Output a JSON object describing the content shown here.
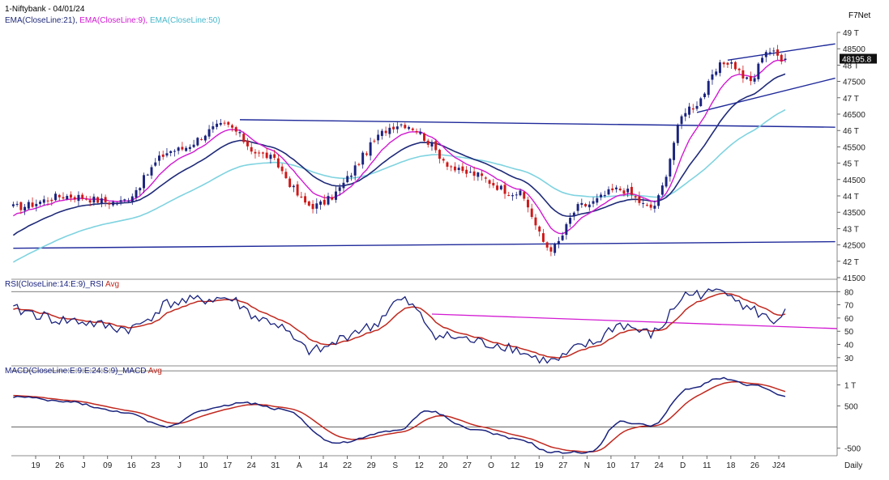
{
  "header": {
    "title": "1-Niftybank - 04/01/24",
    "ema_prefix": "EMA(CloseLine:21),",
    "ema_9": "EMA(CloseLine:9),",
    "ema_50": "EMA(CloseLine:50)",
    "source": "F7Net",
    "rsi_title": "RSI(CloseLine:14:E:9)_RSI",
    "rsi_avg": "Avg",
    "macd_title": "MACD(CloseLine:E:9:E:24:S:9)_MACD",
    "macd_avg": "Avg",
    "period": "Daily"
  },
  "colors": {
    "ema21": "#1f2a78",
    "ema9": "#d21ad2",
    "ema50": "#7fd3e0",
    "trend": "#1f2a9a",
    "bull": "#1a237e",
    "bear": "#d01818",
    "rsi": "#1a237e",
    "rsi_avg": "#c0281e",
    "rsi_trend": "#d21ad2",
    "macd": "#1a237e",
    "macd_avg": "#c0281e"
  },
  "chart_data": [
    {
      "type": "candlestick",
      "title": "1-Niftybank - 04/01/24",
      "last_value_label": "48195.8",
      "y_ticks": [
        "49 T",
        "48500",
        "48 T",
        "47500",
        "47 T",
        "46500",
        "46 T",
        "45500",
        "45 T",
        "44500",
        "44 T",
        "43500",
        "43 T",
        "42500",
        "42 T",
        "41500"
      ],
      "y_values": [
        49000,
        48500,
        48000,
        47500,
        47000,
        46500,
        46000,
        45500,
        45000,
        44500,
        44000,
        43500,
        43000,
        42500,
        42000,
        41500
      ],
      "ylim": [
        41500,
        49000
      ],
      "x_ticks": [
        "19",
        "26",
        "J",
        "09",
        "16",
        "23",
        "J",
        "10",
        "17",
        "24",
        "31",
        "A",
        "14",
        "22",
        "29",
        "S",
        "12",
        "20",
        "27",
        "O",
        "12",
        "19",
        "27",
        "N",
        "10",
        "17",
        "24",
        "D",
        "11",
        "18",
        "26",
        "J24"
      ],
      "key_points": [
        {
          "t": 0,
          "close": 43650
        },
        {
          "t": 14,
          "close": 44000
        },
        {
          "t": 27,
          "close": 43800
        },
        {
          "t": 42,
          "close": 45400
        },
        {
          "t": 55,
          "close": 46150
        },
        {
          "t": 65,
          "close": 45250
        },
        {
          "t": 78,
          "close": 43700
        },
        {
          "t": 101,
          "close": 46200
        },
        {
          "t": 118,
          "close": 44700
        },
        {
          "t": 131,
          "close": 44100
        },
        {
          "t": 140,
          "close": 42400
        },
        {
          "t": 148,
          "close": 43700
        },
        {
          "t": 158,
          "close": 44200
        },
        {
          "t": 166,
          "close": 43650
        },
        {
          "t": 176,
          "close": 46700
        },
        {
          "t": 186,
          "close": 48100
        },
        {
          "t": 192,
          "close": 47500
        },
        {
          "t": 196,
          "close": 48450
        },
        {
          "t": 201,
          "close": 48195
        }
      ],
      "trendlines": [
        {
          "from": [
            59,
            46330
          ],
          "to": [
            214,
            46100
          ]
        },
        {
          "from": [
            0,
            42400
          ],
          "to": [
            214,
            42600
          ]
        },
        {
          "from": [
            178,
            46550
          ],
          "to": [
            214,
            47600
          ]
        },
        {
          "from": [
            186,
            48150
          ],
          "to": [
            214,
            48650
          ]
        }
      ]
    },
    {
      "type": "line",
      "title": "RSI(CloseLine:14:E:9)_RSI",
      "series": [
        {
          "name": "RSI"
        },
        {
          "name": "Avg"
        }
      ],
      "y_ticks": [
        "80",
        "70",
        "60",
        "50",
        "40",
        "30"
      ],
      "y_values": [
        80,
        70,
        60,
        50,
        40,
        30
      ],
      "ylim": [
        25,
        82
      ],
      "key_points": [
        {
          "t": 0,
          "rsi": 66
        },
        {
          "t": 14,
          "rsi": 58
        },
        {
          "t": 30,
          "rsi": 52
        },
        {
          "t": 42,
          "rsi": 72
        },
        {
          "t": 55,
          "rsi": 75
        },
        {
          "t": 66,
          "rsi": 58
        },
        {
          "t": 78,
          "rsi": 35
        },
        {
          "t": 92,
          "rsi": 52
        },
        {
          "t": 101,
          "rsi": 73
        },
        {
          "t": 112,
          "rsi": 46
        },
        {
          "t": 126,
          "rsi": 40
        },
        {
          "t": 140,
          "rsi": 27
        },
        {
          "t": 150,
          "rsi": 40
        },
        {
          "t": 158,
          "rsi": 55
        },
        {
          "t": 166,
          "rsi": 48
        },
        {
          "t": 176,
          "rsi": 78
        },
        {
          "t": 186,
          "rsi": 81
        },
        {
          "t": 192,
          "rsi": 66
        },
        {
          "t": 198,
          "rsi": 58
        },
        {
          "t": 201,
          "rsi": 65
        }
      ],
      "trendline": {
        "from": [
          109,
          63
        ],
        "to": [
          214,
          52
        ]
      }
    },
    {
      "type": "line",
      "title": "MACD(CloseLine:E:9:E:24:S:9)_MACD",
      "series": [
        {
          "name": "MACD"
        },
        {
          "name": "Avg"
        }
      ],
      "y_ticks": [
        "1 T",
        "500",
        "-500"
      ],
      "y_values": [
        1000,
        500,
        -500
      ],
      "zero_line": 0,
      "ylim": [
        -620,
        1220
      ],
      "key_points": [
        {
          "t": 0,
          "macd": 720
        },
        {
          "t": 14,
          "macd": 600
        },
        {
          "t": 28,
          "macd": 360
        },
        {
          "t": 40,
          "macd": 10
        },
        {
          "t": 50,
          "macd": 420
        },
        {
          "t": 60,
          "macd": 580
        },
        {
          "t": 70,
          "macd": 420
        },
        {
          "t": 84,
          "macd": -380
        },
        {
          "t": 100,
          "macd": -80
        },
        {
          "t": 108,
          "macd": 380
        },
        {
          "t": 120,
          "macd": -60
        },
        {
          "t": 132,
          "macd": -300
        },
        {
          "t": 140,
          "macd": -600
        },
        {
          "t": 150,
          "macd": -600
        },
        {
          "t": 158,
          "macd": 120
        },
        {
          "t": 166,
          "macd": 40
        },
        {
          "t": 176,
          "macd": 900
        },
        {
          "t": 184,
          "macd": 1160
        },
        {
          "t": 192,
          "macd": 1000
        },
        {
          "t": 201,
          "macd": 740
        }
      ]
    }
  ]
}
